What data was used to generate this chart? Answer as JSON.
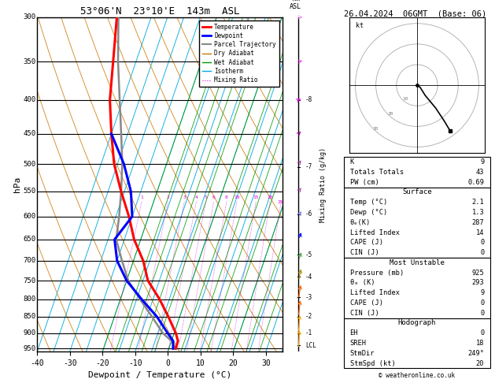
{
  "title_left": "53°06'N  23°10'E  143m  ASL",
  "title_right": "26.04.2024  06GMT  (Base: 06)",
  "xlabel": "Dewpoint / Temperature (°C)",
  "ylabel_left": "hPa",
  "x_min": -40,
  "x_max": 35,
  "P_min": 300,
  "P_max": 960,
  "pressure_labels": [
    300,
    350,
    400,
    450,
    500,
    550,
    600,
    650,
    700,
    750,
    800,
    850,
    900,
    950
  ],
  "temp_profile_p": [
    950,
    925,
    900,
    850,
    800,
    750,
    700,
    650,
    600,
    550,
    500,
    450,
    400,
    350,
    300
  ],
  "temp_profile_T": [
    2.1,
    2.0,
    0.5,
    -3.5,
    -8.0,
    -13.5,
    -17.0,
    -22.0,
    -26.0,
    -31.0,
    -36.0,
    -40.0,
    -44.0,
    -47.0,
    -50.5
  ],
  "dewp_profile_p": [
    950,
    925,
    900,
    850,
    800,
    750,
    700,
    650,
    600,
    550,
    500,
    450
  ],
  "dewp_profile_T": [
    1.3,
    0.5,
    -2.0,
    -7.0,
    -13.5,
    -20.0,
    -25.0,
    -28.0,
    -25.0,
    -28.0,
    -33.0,
    -40.0
  ],
  "parcel_profile_p": [
    950,
    925,
    900,
    850,
    800,
    750,
    700,
    650,
    600,
    550,
    500,
    450,
    400,
    350,
    300
  ],
  "parcel_profile_T": [
    2.1,
    0.0,
    -3.5,
    -8.5,
    -14.0,
    -19.5,
    -23.5,
    -27.5,
    -29.0,
    -31.0,
    -33.5,
    -37.0,
    -41.0,
    -45.5,
    -50.0
  ],
  "mixing_ratio_vals": [
    1,
    2,
    3,
    4,
    5,
    6,
    8,
    10,
    15,
    20,
    25
  ],
  "isotherm_temps": [
    -40,
    -35,
    -30,
    -25,
    -20,
    -15,
    -10,
    -5,
    0,
    5,
    10,
    15,
    20,
    25,
    30,
    35
  ],
  "dry_adiabat_thetas": [
    230,
    240,
    250,
    260,
    270,
    280,
    290,
    300,
    310,
    320,
    330,
    340,
    350,
    360,
    370,
    380,
    390,
    400,
    410,
    420
  ],
  "moist_adiabat_T0s": [
    -20,
    -16,
    -12,
    -8,
    -4,
    0,
    4,
    8,
    12,
    16,
    20,
    24,
    28
  ],
  "km_pressure": [
    940,
    900,
    850,
    795,
    740,
    685,
    595,
    505,
    400
  ],
  "km_labels": [
    "LCL",
    "1",
    "2",
    "3",
    "4",
    "5",
    "6",
    "7",
    "8"
  ],
  "wind_barb_pressure": [
    950,
    900,
    850,
    800,
    750,
    700,
    650,
    600,
    550,
    500,
    450,
    400,
    350,
    300
  ],
  "wind_barb_speed": [
    5,
    8,
    10,
    12,
    14,
    16,
    18,
    20,
    22,
    24,
    26,
    28,
    30,
    32
  ],
  "wind_barb_direction": [
    195,
    200,
    210,
    220,
    230,
    240,
    245,
    250,
    255,
    255,
    260,
    265,
    268,
    270
  ],
  "wind_barb_colors": [
    "#ffaa00",
    "#ffaa00",
    "#ff6600",
    "#ff6600",
    "#aa8800",
    "#44aa44",
    "#0000ff",
    "#8888ff",
    "#aa44aa",
    "#aa44aa",
    "#aa00aa",
    "#ff00ff",
    "#ff44ff",
    "#ff88ff"
  ],
  "hodograph_u": [
    0.0,
    1.5,
    4.0,
    9.0,
    13.0,
    16.0
  ],
  "hodograph_v": [
    0.0,
    -1.0,
    -5.0,
    -11.0,
    -17.0,
    -22.0
  ],
  "lcl_pressure": 940,
  "stats": {
    "K": 9,
    "Totals_Totals": 43,
    "PW_cm": "0.69",
    "Surface_Temp": "2.1",
    "Surface_Dewp": "1.3",
    "Surface_thetae": 287,
    "Surface_LI": 14,
    "Surface_CAPE": 0,
    "Surface_CIN": 0,
    "MU_Pressure": 925,
    "MU_thetae": 293,
    "MU_LI": 9,
    "MU_CAPE": 0,
    "MU_CIN": 0,
    "EH": 0,
    "SREH": 18,
    "StmDir": "249°",
    "StmSpd": 20
  },
  "colors": {
    "temperature": "#ff0000",
    "dewpoint": "#0000ff",
    "parcel": "#888888",
    "dry_adiabat": "#cc7700",
    "wet_adiabat": "#009900",
    "isotherm": "#00aadd",
    "mixing_ratio": "#dd00dd",
    "background": "#ffffff"
  }
}
